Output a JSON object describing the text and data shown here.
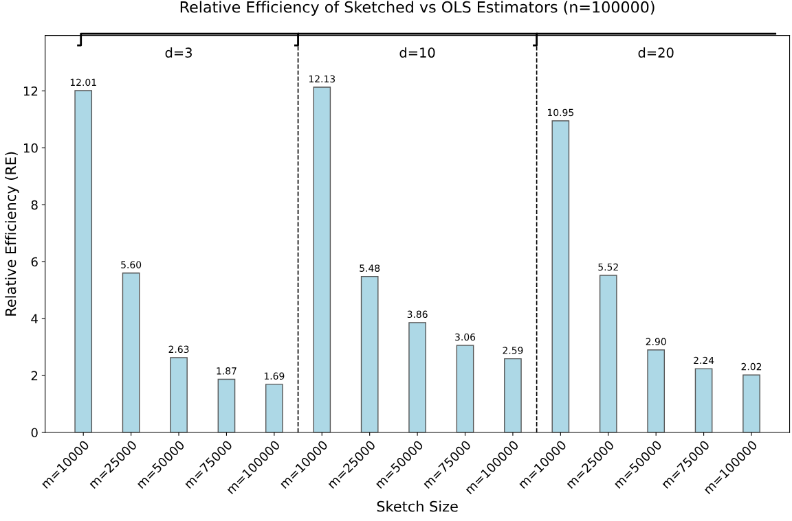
{
  "chart_data": {
    "type": "bar",
    "title": "Relative Efficiency of Sketched vs OLS Estimators (n=100000)",
    "xlabel": "Sketch Size",
    "ylabel": "Relative Efficiency (RE)",
    "categories": [
      "m=10000",
      "m=25000",
      "m=50000",
      "m=75000",
      "m=100000",
      "m=10000",
      "m=25000",
      "m=50000",
      "m=75000",
      "m=100000",
      "m=10000",
      "m=25000",
      "m=50000",
      "m=75000",
      "m=100000"
    ],
    "values": [
      12.01,
      5.6,
      2.63,
      1.87,
      1.69,
      12.13,
      5.48,
      3.86,
      3.06,
      2.59,
      10.95,
      5.52,
      2.9,
      2.24,
      2.02
    ],
    "value_labels": [
      "12.01",
      "5.60",
      "2.63",
      "1.87",
      "1.69",
      "12.13",
      "5.48",
      "3.86",
      "3.06",
      "2.59",
      "10.95",
      "5.52",
      "2.90",
      "2.24",
      "2.02"
    ],
    "color": "#add8e6",
    "ylim": [
      0,
      13.95
    ],
    "yticks": [
      0,
      2,
      4,
      6,
      8,
      10,
      12
    ],
    "annotations": [
      "d=3",
      "d=10",
      "d=20"
    ],
    "grid": false
  }
}
